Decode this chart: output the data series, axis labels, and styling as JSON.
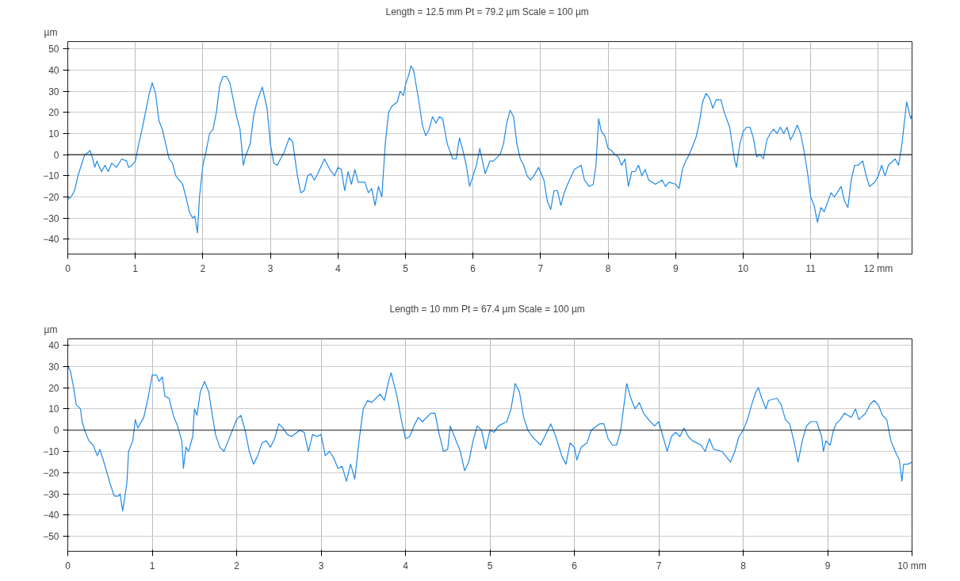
{
  "chart_data": [
    {
      "type": "line",
      "title": "Length = 12.5 mm  Pt = 79.2 µm  Scale = 100 µm",
      "ylabel": "µm",
      "grid": true,
      "marker": "none",
      "line_style": "solid",
      "xlim": [
        0,
        12.5
      ],
      "ylim": [
        -47,
        53.5
      ],
      "xticks": [
        0,
        1,
        2,
        3,
        4,
        5,
        6,
        7,
        8,
        9,
        10,
        11,
        {
          "value": 12,
          "label": "12 mm"
        }
      ],
      "yticks": [
        -40,
        -30,
        -20,
        -10,
        0,
        10,
        20,
        30,
        40,
        50
      ],
      "ref_lines": [
        {
          "axis": "y",
          "value": 0,
          "color": "#222222"
        }
      ],
      "series": [
        {
          "color": "#1f8ae8",
          "x": [
            0,
            0.05,
            0.1,
            0.15,
            0.2,
            0.25,
            0.3,
            0.33,
            0.37,
            0.4,
            0.43,
            0.5,
            0.55,
            0.6,
            0.65,
            0.72,
            0.8,
            0.87,
            0.9,
            0.95,
            1.0,
            1.05,
            1.1,
            1.15,
            1.2,
            1.25,
            1.3,
            1.35,
            1.4,
            1.45,
            1.5,
            1.55,
            1.6,
            1.65,
            1.7,
            1.75,
            1.8,
            1.85,
            1.88,
            1.92,
            1.95,
            2.0,
            2.05,
            2.1,
            2.15,
            2.2,
            2.25,
            2.3,
            2.35,
            2.4,
            2.45,
            2.5,
            2.55,
            2.6,
            2.63,
            2.7,
            2.75,
            2.8,
            2.88,
            2.95,
            3.0,
            3.05,
            3.1,
            3.2,
            3.28,
            3.33,
            3.4,
            3.45,
            3.5,
            3.55,
            3.6,
            3.65,
            3.7,
            3.8,
            3.88,
            3.95,
            4.0,
            4.05,
            4.1,
            4.15,
            4.2,
            4.25,
            4.3,
            4.4,
            4.45,
            4.5,
            4.55,
            4.6,
            4.65,
            4.7,
            4.75,
            4.8,
            4.88,
            4.92,
            4.97,
            5.0,
            5.05,
            5.08,
            5.12,
            5.2,
            5.25,
            5.3,
            5.35,
            5.4,
            5.45,
            5.5,
            5.55,
            5.62,
            5.7,
            5.75,
            5.8,
            5.85,
            5.9,
            5.95,
            6.0,
            6.05,
            6.1,
            6.18,
            6.25,
            6.3,
            6.4,
            6.45,
            6.5,
            6.55,
            6.6,
            6.65,
            6.7,
            6.75,
            6.8,
            6.85,
            6.9,
            6.97,
            7.05,
            7.1,
            7.15,
            7.2,
            7.25,
            7.3,
            7.35,
            7.4,
            7.5,
            7.6,
            7.65,
            7.72,
            7.78,
            7.82,
            7.86,
            7.9,
            7.95,
            8.0,
            8.05,
            8.1,
            8.15,
            8.2,
            8.25,
            8.3,
            8.35,
            8.4,
            8.45,
            8.5,
            8.55,
            8.6,
            8.7,
            8.8,
            8.85,
            8.9,
            9.0,
            9.05,
            9.1,
            9.15,
            9.2,
            9.3,
            9.35,
            9.4,
            9.45,
            9.5,
            9.55,
            9.6,
            9.67,
            9.72,
            9.8,
            9.87,
            9.9,
            9.95,
            10.0,
            10.05,
            10.1,
            10.15,
            10.2,
            10.25,
            10.3,
            10.35,
            10.4,
            10.45,
            10.5,
            10.55,
            10.6,
            10.65,
            10.7,
            10.75,
            10.8,
            10.85,
            10.9,
            10.95,
            11.0,
            11.05,
            11.1,
            11.15,
            11.2,
            11.3,
            11.35,
            11.45,
            11.5,
            11.55,
            11.6,
            11.65,
            11.7,
            11.77,
            11.82,
            11.87,
            11.95,
            12.0,
            12.05,
            12.1,
            12.15,
            12.25,
            12.3,
            12.35,
            12.42,
            12.48,
            12.5
          ],
          "values": [
            -21,
            -20,
            -17,
            -10,
            -5,
            0,
            1,
            2,
            -2,
            -6,
            -3,
            -8,
            -5,
            -8,
            -4,
            -6,
            -2,
            -3,
            -6,
            -5,
            -3,
            5,
            12,
            20,
            28,
            34,
            29,
            16,
            12,
            5,
            -2,
            -4,
            -10,
            -12,
            -14,
            -20,
            -27,
            -30,
            -29,
            -37,
            -20,
            -5,
            2,
            10,
            12,
            20,
            33,
            37,
            37,
            34,
            26,
            18,
            12,
            -5,
            -1,
            5,
            18,
            25,
            32,
            22,
            5,
            -4,
            -5,
            1,
            8,
            6,
            -10,
            -18,
            -17,
            -10,
            -9,
            -12,
            -9,
            -2,
            -7,
            -10,
            -6,
            -7,
            -17,
            -8,
            -14,
            -7,
            -13,
            -13,
            -18,
            -16,
            -24,
            -15,
            -20,
            5,
            20,
            23,
            25,
            30,
            28,
            33,
            38,
            42,
            40,
            25,
            14,
            9,
            12,
            18,
            15,
            18,
            17,
            5,
            -2,
            -2,
            8,
            2,
            -5,
            -15,
            -10,
            -5,
            3,
            -9,
            -3,
            -3,
            0,
            5,
            15,
            21,
            18,
            5,
            -2,
            -5,
            -10,
            -12,
            -10,
            -6,
            -12,
            -22,
            -26,
            -17,
            -17,
            -24,
            -18,
            -14,
            -7,
            -5,
            -12,
            -15,
            -14,
            -5,
            17,
            11,
            9,
            3,
            2,
            0,
            -1,
            -5,
            -2,
            -15,
            -8,
            -8,
            -5,
            -10,
            -7,
            -12,
            -14,
            -12,
            -15,
            -13,
            -14,
            -16,
            -7,
            -3,
            0,
            8,
            15,
            25,
            29,
            27,
            22,
            26,
            26,
            20,
            13,
            -2,
            -6,
            5,
            11,
            13,
            13,
            8,
            -1,
            0,
            -2,
            7,
            10,
            12,
            10,
            13,
            10,
            13,
            7,
            10,
            14,
            10,
            2,
            -8,
            -20,
            -24,
            -32,
            -25,
            -27,
            -18,
            -20,
            -15,
            -22,
            -25,
            -12,
            -5,
            -5,
            -3,
            -10,
            -15,
            -13,
            -10,
            -5,
            -10,
            -5,
            -2,
            -5,
            5,
            25,
            17,
            19
          ]
        }
      ]
    },
    {
      "type": "line",
      "title": "Length = 10 mm  Pt = 67.4 µm  Scale = 100 µm",
      "ylabel": "µm",
      "grid": true,
      "marker": "none",
      "line_style": "solid",
      "xlim": [
        0,
        10
      ],
      "ylim": [
        -57,
        43
      ],
      "xticks": [
        0,
        1,
        2,
        3,
        4,
        5,
        6,
        7,
        8,
        9,
        {
          "value": 10,
          "label": "10 mm"
        }
      ],
      "yticks": [
        -50,
        -40,
        -30,
        -20,
        -10,
        0,
        10,
        20,
        30,
        40
      ],
      "ref_lines": [
        {
          "axis": "y",
          "value": 0,
          "color": "#222222"
        }
      ],
      "series": [
        {
          "color": "#1f8ae8",
          "x": [
            0,
            0.03,
            0.07,
            0.1,
            0.15,
            0.17,
            0.2,
            0.25,
            0.3,
            0.35,
            0.38,
            0.42,
            0.45,
            0.5,
            0.55,
            0.6,
            0.62,
            0.65,
            0.7,
            0.72,
            0.77,
            0.8,
            0.83,
            0.9,
            0.95,
            1.0,
            1.05,
            1.08,
            1.12,
            1.15,
            1.2,
            1.25,
            1.3,
            1.35,
            1.37,
            1.4,
            1.43,
            1.48,
            1.5,
            1.53,
            1.57,
            1.62,
            1.67,
            1.7,
            1.75,
            1.8,
            1.85,
            1.9,
            1.95,
            2.0,
            2.05,
            2.1,
            2.15,
            2.2,
            2.25,
            2.3,
            2.35,
            2.4,
            2.45,
            2.5,
            2.55,
            2.6,
            2.65,
            2.75,
            2.8,
            2.85,
            2.9,
            2.95,
            3.0,
            3.05,
            3.1,
            3.15,
            3.2,
            3.25,
            3.3,
            3.35,
            3.4,
            3.45,
            3.5,
            3.55,
            3.6,
            3.65,
            3.7,
            3.75,
            3.8,
            3.83,
            3.9,
            3.95,
            4.0,
            4.05,
            4.1,
            4.15,
            4.2,
            4.3,
            4.35,
            4.4,
            4.45,
            4.5,
            4.53,
            4.58,
            4.65,
            4.7,
            4.75,
            4.8,
            4.85,
            4.9,
            4.95,
            5.0,
            5.05,
            5.1,
            5.2,
            5.25,
            5.3,
            5.35,
            5.4,
            5.45,
            5.5,
            5.55,
            5.6,
            5.65,
            5.72,
            5.78,
            5.85,
            5.9,
            5.95,
            6.0,
            6.03,
            6.08,
            6.15,
            6.2,
            6.3,
            6.35,
            6.4,
            6.45,
            6.5,
            6.55,
            6.62,
            6.67,
            6.72,
            6.77,
            6.82,
            6.9,
            6.95,
            7.0,
            7.05,
            7.1,
            7.15,
            7.2,
            7.25,
            7.3,
            7.35,
            7.4,
            7.5,
            7.55,
            7.6,
            7.65,
            7.75,
            7.85,
            7.9,
            7.95,
            8.0,
            8.05,
            8.1,
            8.15,
            8.18,
            8.22,
            8.27,
            8.3,
            8.4,
            8.45,
            8.5,
            8.55,
            8.6,
            8.65,
            8.7,
            8.75,
            8.8,
            8.87,
            8.93,
            8.95,
            8.98,
            9.03,
            9.07,
            9.1,
            9.15,
            9.2,
            9.28,
            9.33,
            9.37,
            9.45,
            9.5,
            9.55,
            9.6,
            9.65,
            9.7,
            9.75,
            9.8,
            9.85,
            9.88,
            9.9,
            9.95,
            10.0
          ],
          "values": [
            30,
            28,
            20,
            12,
            10,
            4,
            0,
            -5,
            -7,
            -12,
            -9,
            -14,
            -18,
            -25,
            -31,
            -31,
            -30,
            -38,
            -25,
            -10,
            -5,
            5,
            1,
            6,
            15,
            26,
            26,
            23,
            25,
            16,
            15,
            7,
            2,
            -5,
            -18,
            -8,
            -10,
            -3,
            10,
            7,
            18,
            23,
            18,
            10,
            -2,
            -8,
            -10,
            -5,
            0,
            5,
            7,
            0,
            -10,
            -16,
            -12,
            -6,
            -5,
            -8,
            -4,
            3,
            1,
            -2,
            -3,
            0,
            -1,
            -10,
            -2,
            -3,
            -2,
            -12,
            -10,
            -13,
            -18,
            -17,
            -24,
            -16,
            -23,
            -5,
            10,
            14,
            13,
            15,
            17,
            14,
            23,
            27,
            16,
            5,
            -4,
            -3,
            2,
            6,
            4,
            8,
            8,
            -2,
            -10,
            -9,
            2,
            -3,
            -10,
            -19,
            -15,
            -5,
            2,
            0,
            -9,
            0,
            -1,
            2,
            4,
            10,
            22,
            18,
            6,
            0,
            -3,
            -5,
            -7,
            -3,
            3,
            -3,
            -12,
            -16,
            -6,
            -8,
            -14,
            -8,
            -6,
            0,
            3,
            3,
            -4,
            -7,
            -7,
            0,
            22,
            15,
            10,
            13,
            8,
            4,
            2,
            4,
            -3,
            -10,
            -3,
            -1,
            -3,
            1,
            -3,
            -5,
            -7,
            -10,
            -4,
            -9,
            -10,
            -15,
            -10,
            -3,
            0,
            5,
            12,
            18,
            20,
            15,
            10,
            14,
            15,
            12,
            5,
            3,
            -5,
            -15,
            -5,
            2,
            4,
            4,
            -3,
            -10,
            -5,
            -7,
            0,
            3,
            5,
            8,
            6,
            10,
            5,
            8,
            12,
            14,
            12,
            7,
            5,
            -5,
            -10,
            -14,
            -24,
            -16,
            -16,
            -15
          ]
        }
      ]
    }
  ]
}
